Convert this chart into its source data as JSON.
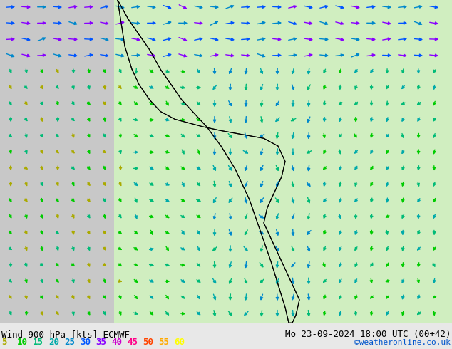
{
  "title_left": "Wind 900 hPa [kts] ECMWF",
  "title_right": "Mo 23-09-2024 18:00 UTC (00+42)",
  "copyright": "©weatheronline.co.uk",
  "colorbar_values": [
    5,
    10,
    15,
    20,
    25,
    30,
    35,
    40,
    45,
    50,
    55,
    60
  ],
  "colorbar_colors": [
    "#aaaa00",
    "#00cc00",
    "#00bb77",
    "#00aaaa",
    "#0088cc",
    "#0055ff",
    "#8800ff",
    "#cc00cc",
    "#ff0088",
    "#ff4400",
    "#ffaa00",
    "#ffff00"
  ],
  "background_color": "#e8e8e8",
  "map_bg_color": "#d0eec0",
  "sea_color": "#c8c8c8",
  "text_color": "#000000",
  "bottom_bar_color": "#ffffff",
  "fig_width": 6.34,
  "fig_height": 4.9,
  "dpi": 100
}
